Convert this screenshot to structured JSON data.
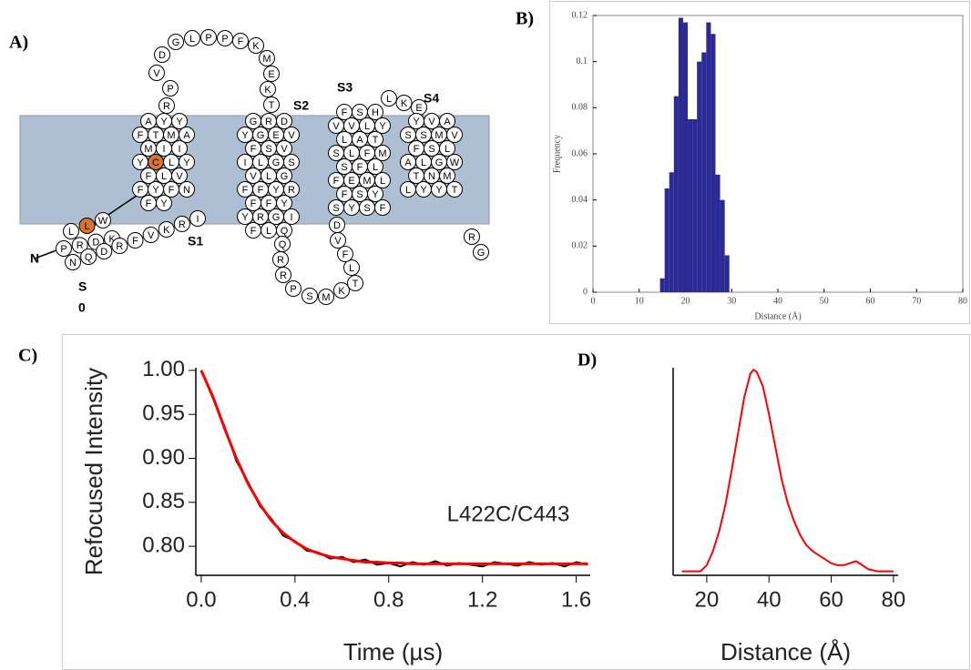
{
  "topology": {
    "panel_label": "A)",
    "n_label": "N",
    "helix_labels": [
      "S1",
      "S2",
      "S3",
      "S4"
    ],
    "s0_label": [
      "S",
      "0"
    ],
    "highlight_color": "#d9742e",
    "membrane_color": "#aebfd4",
    "segments": [
      [
        "P",
        "R",
        "D",
        "K"
      ],
      [
        "N",
        "Q",
        "D",
        "R",
        "F",
        "V",
        "K",
        "R",
        "I"
      ],
      [
        "L",
        {
          "letter": "L",
          "highlight": true
        },
        "W"
      ],
      [
        "A",
        "Y",
        "Y",
        "F",
        "T",
        "M",
        "A",
        "M",
        "I",
        "I",
        "Y",
        {
          "letter": "C",
          "highlight": true
        },
        "L",
        "Y",
        "F",
        "L",
        "V",
        "F",
        "Y",
        "F",
        "N",
        "F",
        "Y"
      ],
      [
        "R",
        "P",
        "V",
        "D",
        "G",
        "L",
        "P",
        "P",
        "F",
        "K",
        "M",
        "E",
        "K",
        "T"
      ],
      [
        "G",
        "R",
        "D",
        "Y",
        "G",
        "E",
        "V",
        "F",
        "S",
        "V",
        "I",
        "L",
        "G",
        "S",
        "V",
        "L",
        "G",
        "F",
        "F",
        "Y",
        "R",
        "F",
        "F",
        "Y",
        "Y",
        "R",
        "G",
        "I",
        "F",
        "L",
        "Q"
      ],
      [
        "Q",
        "R",
        "R",
        "P",
        "S",
        "M",
        "K",
        "T",
        "L",
        "F",
        "V",
        "D"
      ],
      [
        "F",
        "S",
        "H",
        "V",
        "V",
        "L",
        "Y",
        "L",
        "A",
        "T",
        "S",
        "L",
        "F",
        "M",
        "S",
        "F",
        "L",
        "F",
        "E",
        "M",
        "L",
        "F",
        "S",
        "Y",
        "S",
        "Y",
        "S",
        "F"
      ],
      [
        "L",
        "K",
        "E"
      ],
      [
        "Y",
        "V",
        "A",
        "S",
        "S",
        "M",
        "V",
        "F",
        "S",
        "L",
        "A",
        "L",
        "G",
        "W",
        "T",
        "N",
        "M",
        "L",
        "Y",
        "Y",
        "T"
      ],
      [
        "R",
        "G"
      ]
    ]
  },
  "chart_data": [
    {
      "type": "histogram",
      "panel_label": "B)",
      "xlabel": "Distance (Å)",
      "ylabel": "Frequency",
      "color": "#2b2a94",
      "bins": [
        14.5,
        15.5,
        16.5,
        17.5,
        18.5,
        19.5,
        20.5,
        21.5,
        22.5,
        23.5,
        24.5,
        25.5,
        26.5,
        27.5,
        28.5,
        29.5
      ],
      "values": [
        0.006,
        0.045,
        0.052,
        0.085,
        0.119,
        0.117,
        0.075,
        0.075,
        0.1,
        0.104,
        0.117,
        0.112,
        0.051,
        0.04,
        0.016
      ],
      "xlim": [
        0,
        80
      ],
      "xticks": [
        0,
        10,
        20,
        30,
        40,
        50,
        60,
        70,
        80
      ],
      "ylim": [
        0,
        0.12
      ],
      "yticks": [
        0,
        0.02,
        0.04,
        0.06,
        0.08,
        0.1,
        0.12
      ]
    },
    {
      "type": "line",
      "panel_label": "C)",
      "xlabel": "Time (µs)",
      "ylabel": "Refocused Intensity",
      "annotation": "L422C/C443",
      "x": [
        0,
        0.05,
        0.1,
        0.15,
        0.2,
        0.25,
        0.3,
        0.35,
        0.4,
        0.45,
        0.5,
        0.55,
        0.6,
        0.65,
        0.7,
        0.75,
        0.8,
        0.85,
        0.9,
        0.95,
        1.0,
        1.05,
        1.1,
        1.15,
        1.2,
        1.25,
        1.3,
        1.35,
        1.4,
        1.45,
        1.5,
        1.55,
        1.6,
        1.65
      ],
      "series": [
        {
          "color": "#000000",
          "values": [
            1.0,
            0.968,
            0.936,
            0.897,
            0.873,
            0.846,
            0.831,
            0.812,
            0.806,
            0.795,
            0.793,
            0.786,
            0.788,
            0.782,
            0.785,
            0.779,
            0.781,
            0.777,
            0.782,
            0.779,
            0.783,
            0.778,
            0.781,
            0.779,
            0.777,
            0.782,
            0.78,
            0.778,
            0.782,
            0.779,
            0.781,
            0.777,
            0.782,
            0.779
          ]
        },
        {
          "color": "#ff0000",
          "values": [
            1.0,
            0.97,
            0.934,
            0.9,
            0.871,
            0.848,
            0.829,
            0.815,
            0.805,
            0.797,
            0.792,
            0.788,
            0.786,
            0.784,
            0.782,
            0.782,
            0.781,
            0.781,
            0.78,
            0.78,
            0.78,
            0.78,
            0.78,
            0.78,
            0.78,
            0.78,
            0.78,
            0.78,
            0.78,
            0.78,
            0.78,
            0.78,
            0.78,
            0.78
          ]
        }
      ],
      "xlim": [
        -0.023,
        1.66
      ],
      "xticks": [
        {
          "value": 0,
          "label": "0.0"
        },
        0.4,
        0.8,
        1.2,
        1.6
      ],
      "ylim": [
        0.767,
        1.003
      ],
      "yticks": [
        {
          "value": 0.8,
          "label": "0.80"
        },
        0.85,
        {
          "value": 0.9,
          "label": "0.90"
        },
        0.95,
        {
          "value": 1,
          "label": "1.00"
        }
      ]
    },
    {
      "type": "line",
      "panel_label": "D)",
      "xlabel": "Distance (Å)",
      "x": [
        12,
        15,
        18,
        20,
        22,
        24,
        26,
        28,
        30,
        32,
        34,
        35,
        36,
        38,
        40,
        42,
        44,
        46,
        48,
        50,
        52,
        54,
        56,
        58,
        60,
        62,
        64,
        66,
        68,
        70,
        72,
        75,
        80
      ],
      "series": [
        {
          "color": "#ff0000",
          "values": [
            0,
            0,
            0,
            0.03,
            0.1,
            0.2,
            0.33,
            0.5,
            0.68,
            0.86,
            0.98,
            1.0,
            0.99,
            0.92,
            0.78,
            0.62,
            0.46,
            0.34,
            0.25,
            0.18,
            0.13,
            0.1,
            0.08,
            0.06,
            0.04,
            0.03,
            0.03,
            0.04,
            0.05,
            0.03,
            0.01,
            0,
            0
          ]
        }
      ],
      "xlim": [
        9.2,
        81.5
      ],
      "xticks": [
        20,
        40,
        60,
        80
      ],
      "ylim": [
        -0.02,
        1.01
      ]
    }
  ]
}
